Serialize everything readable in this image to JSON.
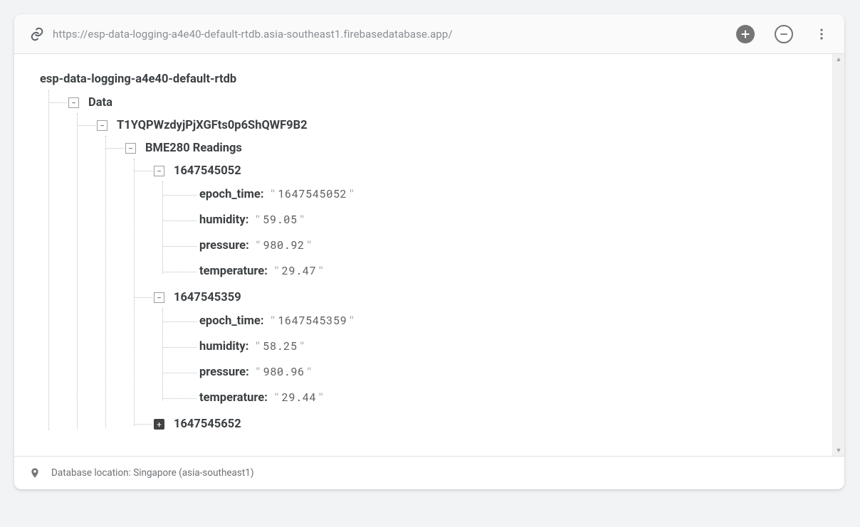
{
  "toolbar": {
    "url": "https://esp-data-logging-a4e40-default-rtdb.asia-southeast1.firebasedatabase.app/"
  },
  "tree": {
    "root": "esp-data-logging-a4e40-default-rtdb",
    "node1": "Data",
    "node2": "T1YQPWzdyjPjXGFts0p6ShQWF9B2",
    "node3": "BME280 Readings",
    "entries": [
      {
        "ts": "1647545052",
        "expanded": true,
        "leaves": [
          {
            "k": "epoch_time",
            "v": "1647545052"
          },
          {
            "k": "humidity",
            "v": "59.05"
          },
          {
            "k": "pressure",
            "v": "980.92"
          },
          {
            "k": "temperature",
            "v": "29.47"
          }
        ]
      },
      {
        "ts": "1647545359",
        "expanded": true,
        "leaves": [
          {
            "k": "epoch_time",
            "v": "1647545359"
          },
          {
            "k": "humidity",
            "v": "58.25"
          },
          {
            "k": "pressure",
            "v": "980.96"
          },
          {
            "k": "temperature",
            "v": "29.44"
          }
        ]
      },
      {
        "ts": "1647545652",
        "expanded": false,
        "leaves": []
      }
    ]
  },
  "footer": {
    "text": "Database location: Singapore (asia-southeast1)"
  },
  "glyphs": {
    "minus": "−",
    "plus": "+"
  }
}
